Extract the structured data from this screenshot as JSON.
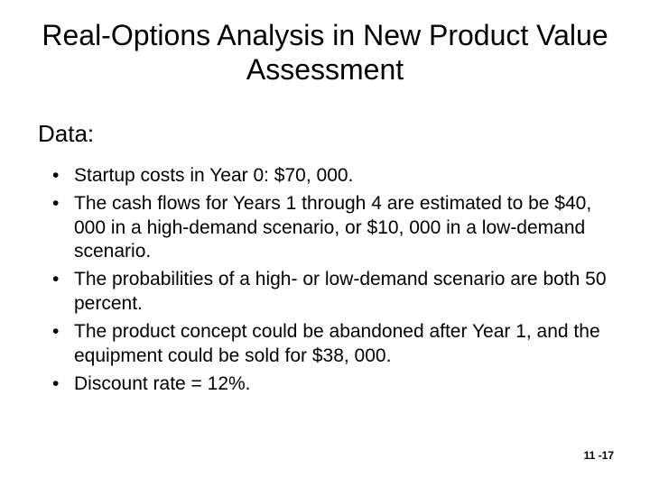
{
  "title": "Real-Options Analysis in New Product Value Assessment",
  "subheading": "Data:",
  "bullets": [
    "Startup costs in Year 0: $70, 000.",
    "The cash flows for Years 1 through 4 are estimated to be $40, 000 in a high-demand scenario, or $10, 000 in a low-demand scenario.",
    "The probabilities of a high- or low-demand scenario are both 50 percent.",
    "The product concept could be abandoned after Year 1, and the equipment could be sold for $38, 000.",
    "Discount rate = 12%."
  ],
  "footer": "11 -17"
}
